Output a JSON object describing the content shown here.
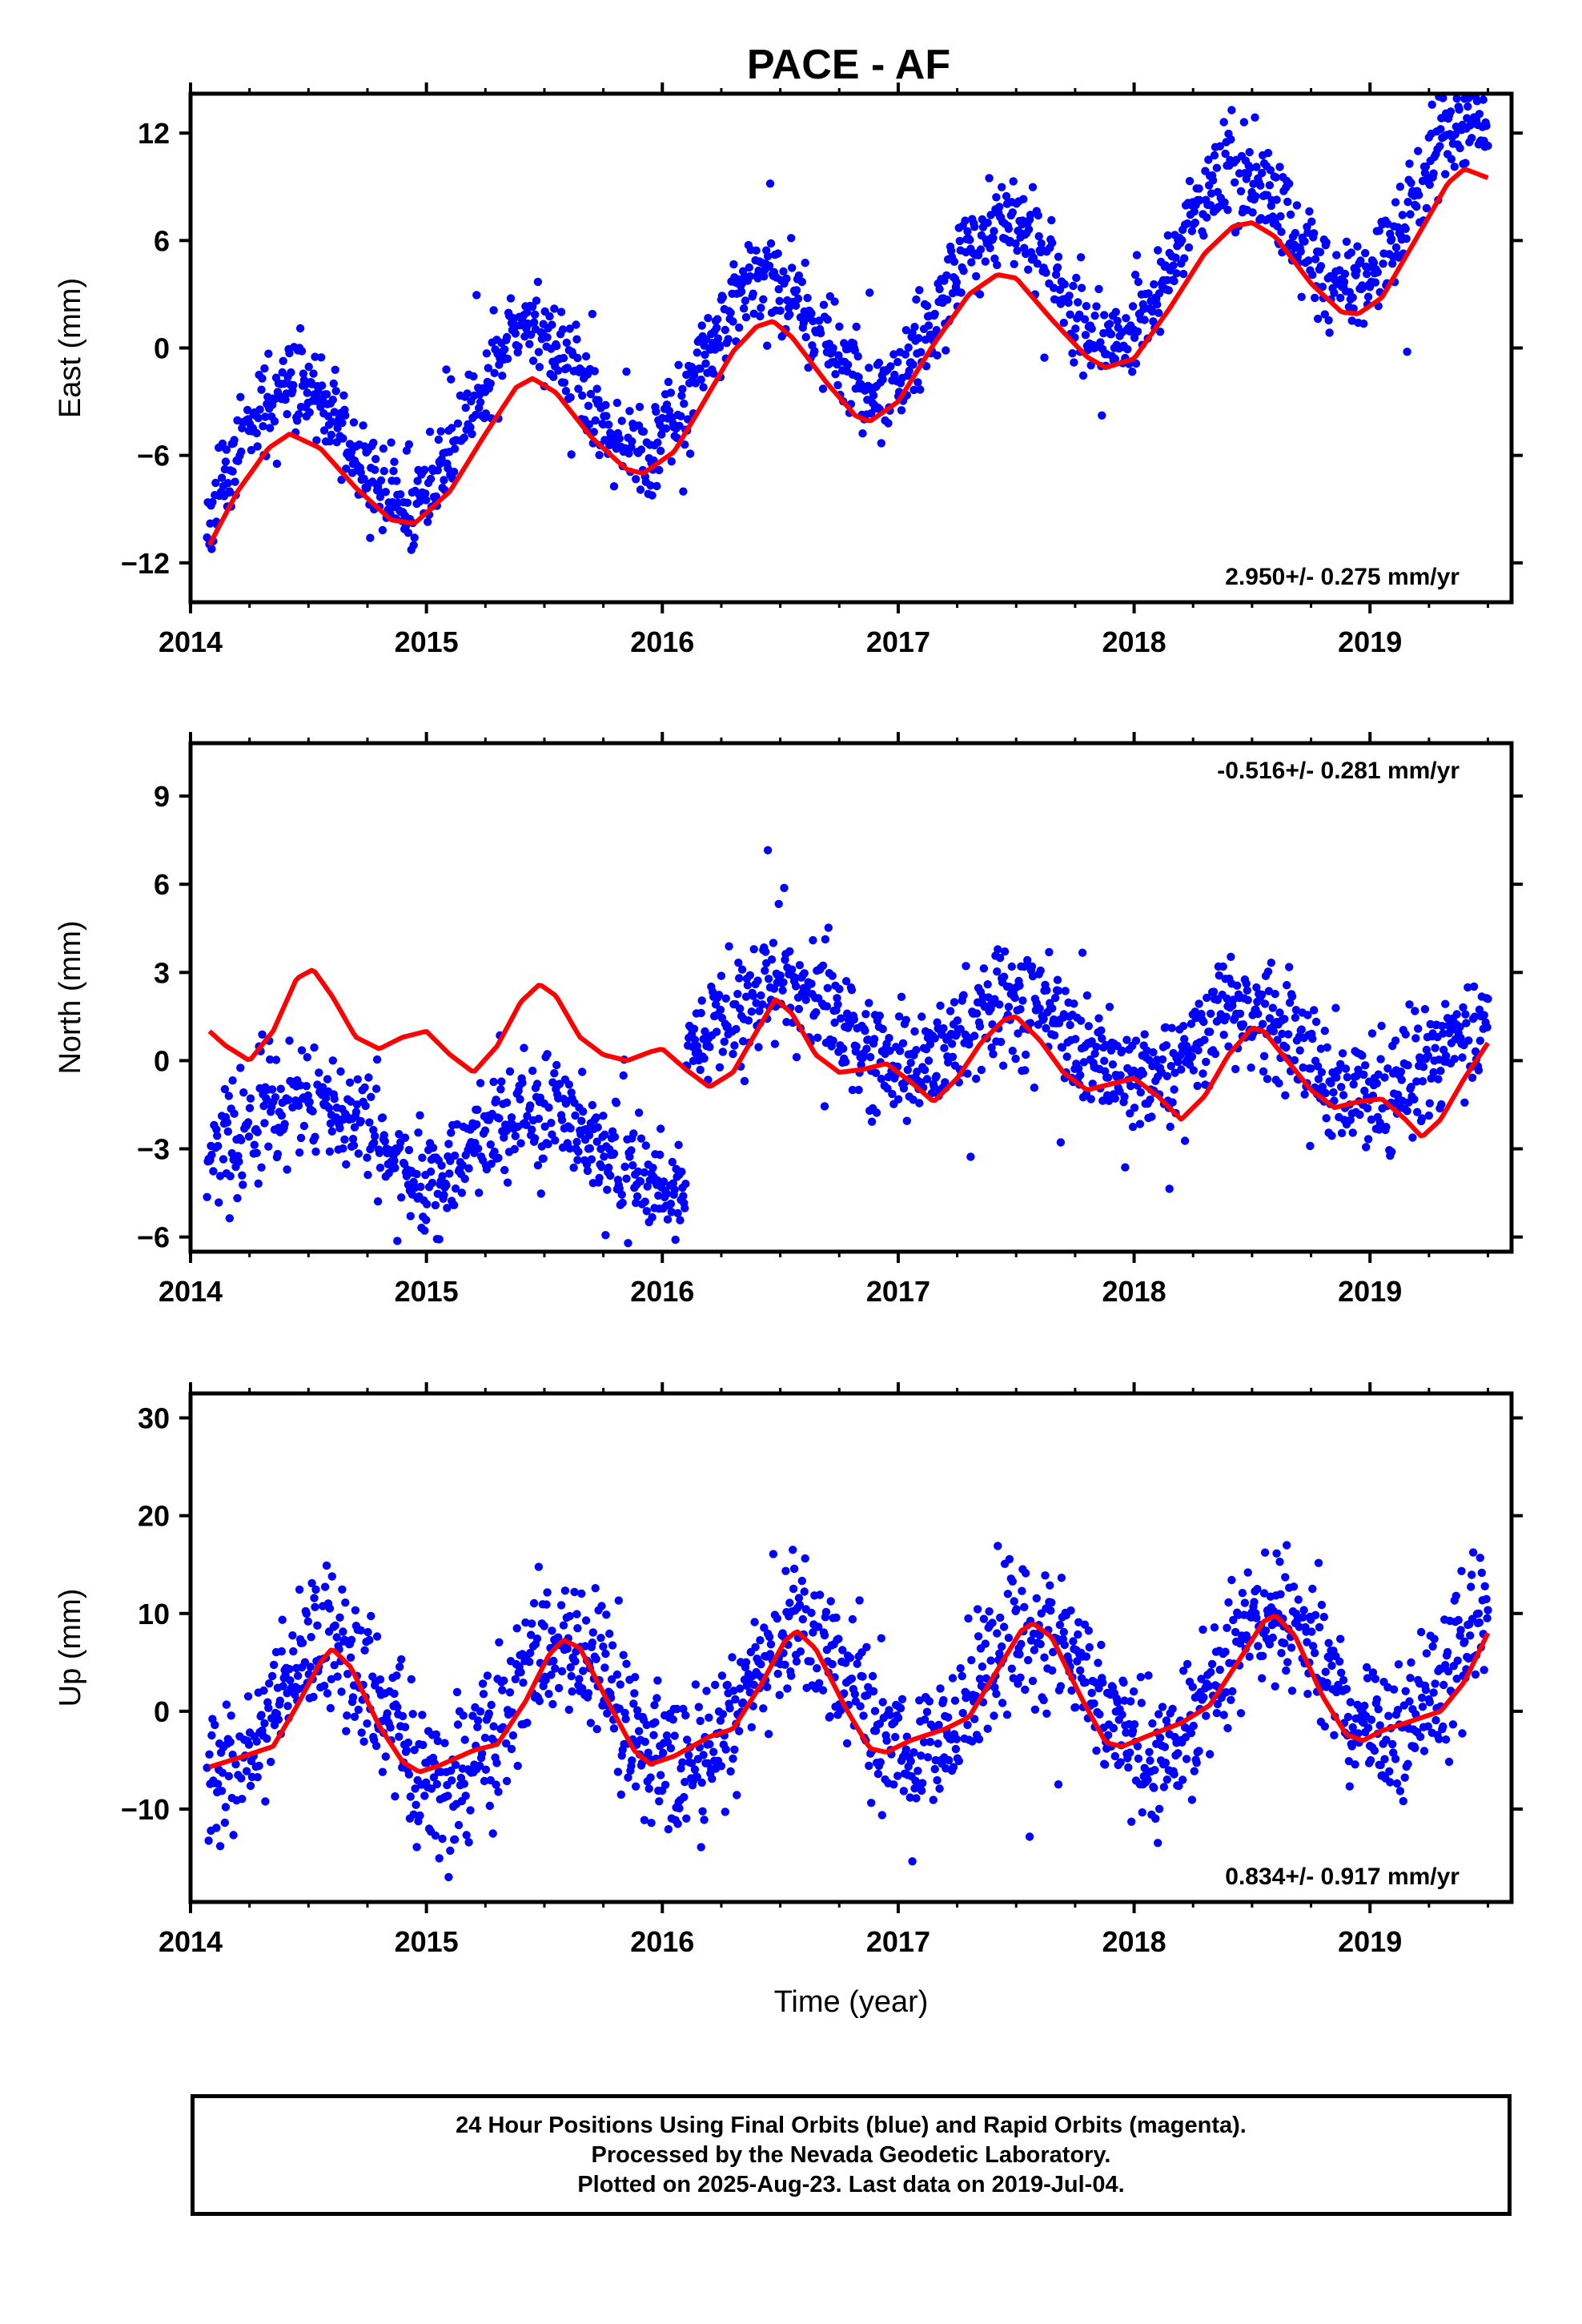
{
  "title": "PACE - AF",
  "footer": {
    "line1": "24 Hour Positions Using Final Orbits (blue) and Rapid Orbits (magenta).",
    "line2": "Processed by the Nevada Geodetic Laboratory.",
    "line3": "Plotted on 2025-Aug-23. Last data on 2019-Jul-04."
  },
  "colors": {
    "points": "#0000ff",
    "fit": "#ff0000",
    "frame": "#000000"
  },
  "chart_data": [
    {
      "type": "scatter",
      "ylabel": "East (mm)",
      "xlabel": "",
      "xlim": [
        2014.0,
        2019.6
      ],
      "ylim": [
        -14.2,
        14.2
      ],
      "xticks": [
        2014,
        2015,
        2016,
        2017,
        2018,
        2019
      ],
      "yticks": [
        -12,
        -6,
        0,
        6,
        12
      ],
      "rate_text": "2.950+/- 0.275 mm/yr",
      "rate_position": "bottom-right",
      "data_range": [
        2014.07,
        2019.5
      ],
      "fit": {
        "name": "fit",
        "points": [
          [
            2014.08,
            -11.0
          ],
          [
            2014.2,
            -8.0
          ],
          [
            2014.33,
            -5.6
          ],
          [
            2014.42,
            -4.8
          ],
          [
            2014.55,
            -5.6
          ],
          [
            2014.7,
            -7.8
          ],
          [
            2014.85,
            -9.6
          ],
          [
            2014.95,
            -9.8
          ],
          [
            2015.1,
            -8.0
          ],
          [
            2015.25,
            -4.8
          ],
          [
            2015.38,
            -2.2
          ],
          [
            2015.45,
            -1.7
          ],
          [
            2015.55,
            -2.5
          ],
          [
            2015.7,
            -5.0
          ],
          [
            2015.85,
            -6.8
          ],
          [
            2015.92,
            -7.0
          ],
          [
            2016.05,
            -5.8
          ],
          [
            2016.15,
            -3.6
          ],
          [
            2016.3,
            -0.2
          ],
          [
            2016.4,
            1.2
          ],
          [
            2016.47,
            1.5
          ],
          [
            2016.55,
            0.6
          ],
          [
            2016.7,
            -2.0
          ],
          [
            2016.82,
            -3.8
          ],
          [
            2016.88,
            -4.1
          ],
          [
            2017.0,
            -3.0
          ],
          [
            2017.15,
            0.2
          ],
          [
            2017.3,
            3.0
          ],
          [
            2017.42,
            4.1
          ],
          [
            2017.5,
            3.9
          ],
          [
            2017.65,
            1.6
          ],
          [
            2017.8,
            -0.5
          ],
          [
            2017.88,
            -1.1
          ],
          [
            2018.0,
            -0.6
          ],
          [
            2018.15,
            2.2
          ],
          [
            2018.3,
            5.3
          ],
          [
            2018.42,
            6.8
          ],
          [
            2018.5,
            7.0
          ],
          [
            2018.6,
            6.2
          ],
          [
            2018.75,
            3.6
          ],
          [
            2018.88,
            2.0
          ],
          [
            2018.95,
            1.9
          ],
          [
            2019.05,
            2.8
          ],
          [
            2019.2,
            6.2
          ],
          [
            2019.33,
            9.2
          ],
          [
            2019.4,
            10.0
          ],
          [
            2019.5,
            9.5
          ]
        ]
      },
      "scatter_model": {
        "trend": 2.95,
        "offset_2014": -7.2,
        "annual_amp": 4.0,
        "phase_peak": 0.42,
        "noise_sd": 1.3,
        "n_points": 1650,
        "seed": 11
      }
    },
    {
      "type": "scatter",
      "ylabel": "North (mm)",
      "xlabel": "",
      "xlim": [
        2014.0,
        2019.6
      ],
      "ylim": [
        -6.5,
        10.8
      ],
      "xticks": [
        2014,
        2015,
        2016,
        2017,
        2018,
        2019
      ],
      "yticks": [
        -6,
        -3,
        0,
        3,
        6,
        9
      ],
      "rate_text": "-0.516+/- 0.281 mm/yr",
      "rate_position": "top-right",
      "data_range": [
        2014.07,
        2019.5
      ],
      "fit": {
        "name": "fit",
        "points": [
          [
            2014.08,
            1.0
          ],
          [
            2014.15,
            0.5
          ],
          [
            2014.25,
            0.0
          ],
          [
            2014.35,
            1.0
          ],
          [
            2014.45,
            2.8
          ],
          [
            2014.52,
            3.1
          ],
          [
            2014.6,
            2.2
          ],
          [
            2014.7,
            0.8
          ],
          [
            2014.8,
            0.4
          ],
          [
            2014.9,
            0.8
          ],
          [
            2015.0,
            1.0
          ],
          [
            2015.1,
            0.2
          ],
          [
            2015.2,
            -0.4
          ],
          [
            2015.3,
            0.5
          ],
          [
            2015.4,
            2.0
          ],
          [
            2015.48,
            2.6
          ],
          [
            2015.55,
            2.2
          ],
          [
            2015.65,
            0.8
          ],
          [
            2015.75,
            0.2
          ],
          [
            2015.85,
            0.0
          ],
          [
            2015.95,
            0.3
          ],
          [
            2016.0,
            0.4
          ],
          [
            2016.1,
            -0.3
          ],
          [
            2016.2,
            -0.9
          ],
          [
            2016.3,
            -0.4
          ],
          [
            2016.4,
            1.0
          ],
          [
            2016.48,
            2.1
          ],
          [
            2016.55,
            1.6
          ],
          [
            2016.65,
            0.2
          ],
          [
            2016.75,
            -0.4
          ],
          [
            2016.85,
            -0.3
          ],
          [
            2016.95,
            -0.1
          ],
          [
            2017.05,
            -0.7
          ],
          [
            2017.15,
            -1.4
          ],
          [
            2017.25,
            -0.6
          ],
          [
            2017.35,
            0.6
          ],
          [
            2017.45,
            1.4
          ],
          [
            2017.5,
            1.5
          ],
          [
            2017.6,
            0.7
          ],
          [
            2017.7,
            -0.4
          ],
          [
            2017.8,
            -1.0
          ],
          [
            2017.9,
            -0.8
          ],
          [
            2018.0,
            -0.6
          ],
          [
            2018.1,
            -1.2
          ],
          [
            2018.2,
            -2.0
          ],
          [
            2018.3,
            -1.2
          ],
          [
            2018.4,
            0.2
          ],
          [
            2018.5,
            1.1
          ],
          [
            2018.55,
            1.0
          ],
          [
            2018.65,
            0.0
          ],
          [
            2018.75,
            -1.0
          ],
          [
            2018.85,
            -1.6
          ],
          [
            2018.95,
            -1.4
          ],
          [
            2019.05,
            -1.3
          ],
          [
            2019.15,
            -2.0
          ],
          [
            2019.22,
            -2.6
          ],
          [
            2019.3,
            -2.0
          ],
          [
            2019.4,
            -0.6
          ],
          [
            2019.5,
            0.6
          ]
        ]
      },
      "scatter_model": {
        "segments": [
          [
            2014.07,
            2016.1,
            -2.2
          ],
          [
            2016.1,
            2019.5,
            2.6
          ]
        ],
        "trend": -0.516,
        "annual_amp": 1.3,
        "phase_peak": 0.5,
        "noise_sd": 0.95,
        "n_points": 1650,
        "seed": 23
      }
    },
    {
      "type": "scatter",
      "ylabel": "Up (mm)",
      "xlabel": "Time (year)",
      "xlim": [
        2014.0,
        2019.6
      ],
      "ylim": [
        -19.5,
        32.5
      ],
      "xticks": [
        2014,
        2015,
        2016,
        2017,
        2018,
        2019
      ],
      "yticks": [
        -10,
        0,
        10,
        20,
        30
      ],
      "rate_text": "0.834+/- 0.917 mm/yr",
      "rate_position": "bottom-right",
      "data_range": [
        2014.07,
        2019.5
      ],
      "fit": {
        "name": "fit",
        "points": [
          [
            2014.08,
            -5.7
          ],
          [
            2014.2,
            -4.8
          ],
          [
            2014.35,
            -3.6
          ],
          [
            2014.45,
            0.5
          ],
          [
            2014.55,
            5.0
          ],
          [
            2014.6,
            6.4
          ],
          [
            2014.68,
            4.5
          ],
          [
            2014.8,
            -1.5
          ],
          [
            2014.9,
            -5.2
          ],
          [
            2014.97,
            -6.2
          ],
          [
            2015.05,
            -5.6
          ],
          [
            2015.2,
            -4.0
          ],
          [
            2015.3,
            -3.4
          ],
          [
            2015.42,
            1.0
          ],
          [
            2015.52,
            5.8
          ],
          [
            2015.58,
            7.3
          ],
          [
            2015.65,
            6.5
          ],
          [
            2015.78,
            0.5
          ],
          [
            2015.88,
            -4.0
          ],
          [
            2015.95,
            -5.4
          ],
          [
            2016.05,
            -4.6
          ],
          [
            2016.2,
            -2.6
          ],
          [
            2016.3,
            -1.8
          ],
          [
            2016.42,
            2.8
          ],
          [
            2016.52,
            7.2
          ],
          [
            2016.57,
            8.2
          ],
          [
            2016.65,
            6.4
          ],
          [
            2016.78,
            0.2
          ],
          [
            2016.88,
            -3.8
          ],
          [
            2016.95,
            -4.2
          ],
          [
            2017.05,
            -3.0
          ],
          [
            2017.2,
            -1.8
          ],
          [
            2017.3,
            -0.6
          ],
          [
            2017.42,
            4.2
          ],
          [
            2017.52,
            8.2
          ],
          [
            2017.57,
            9.0
          ],
          [
            2017.65,
            7.6
          ],
          [
            2017.78,
            1.2
          ],
          [
            2017.88,
            -3.2
          ],
          [
            2017.95,
            -3.6
          ],
          [
            2018.05,
            -2.6
          ],
          [
            2018.2,
            -1.2
          ],
          [
            2018.32,
            0.6
          ],
          [
            2018.45,
            5.4
          ],
          [
            2018.55,
            9.2
          ],
          [
            2018.6,
            9.8
          ],
          [
            2018.68,
            7.8
          ],
          [
            2018.8,
            1.5
          ],
          [
            2018.9,
            -2.4
          ],
          [
            2018.97,
            -3.0
          ],
          [
            2019.05,
            -2.0
          ],
          [
            2019.2,
            -0.8
          ],
          [
            2019.3,
            0.0
          ],
          [
            2019.4,
            3.0
          ],
          [
            2019.5,
            8.0
          ]
        ]
      },
      "scatter_model": {
        "trend": 0.834,
        "offset_2014": -1.0,
        "annual_amp": 6.8,
        "phase_peak": 0.58,
        "noise_sd": 3.6,
        "n_points": 1650,
        "seed": 37
      }
    }
  ]
}
